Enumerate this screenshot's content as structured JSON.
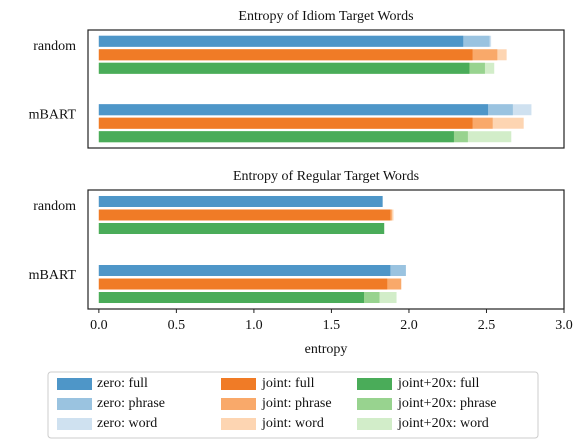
{
  "chart_data": [
    {
      "type": "barh",
      "title": "Entropy of Idiom Target Words",
      "categories": [
        "random",
        "mBART"
      ],
      "series": [
        {
          "values": [
            2.35,
            2.51
          ]
        },
        {
          "values": [
            2.52,
            2.67
          ]
        },
        {
          "values": [
            2.53,
            2.79
          ]
        },
        {
          "values": [
            2.41,
            2.41
          ]
        },
        {
          "values": [
            2.57,
            2.54
          ]
        },
        {
          "values": [
            2.63,
            2.74
          ]
        },
        {
          "values": [
            2.39,
            2.29
          ]
        },
        {
          "values": [
            2.49,
            2.38
          ]
        },
        {
          "values": [
            2.55,
            2.66
          ]
        }
      ],
      "xlim": [
        -0.07,
        3.0
      ]
    },
    {
      "type": "barh",
      "title": "Entropy of Regular Target Words",
      "categories": [
        "random",
        "mBART"
      ],
      "series": [
        {
          "name": "zero: full",
          "color": "#4e96c8",
          "values": [
            1.83,
            1.88
          ]
        },
        {
          "name": "zero: phrase",
          "color": "#9ac3e0",
          "values": [
            1.83,
            1.98
          ]
        },
        {
          "name": "zero: word",
          "color": "#cfe1f0",
          "values": [
            1.83,
            1.98
          ]
        },
        {
          "name": "joint: full",
          "color": "#f07b26",
          "values": [
            1.88,
            1.86
          ]
        },
        {
          "name": "joint: phrase",
          "color": "#f9a96a",
          "values": [
            1.89,
            1.95
          ]
        },
        {
          "name": "joint: word",
          "color": "#fdd5b2",
          "values": [
            1.9,
            1.95
          ]
        },
        {
          "name": "joint+20x: full",
          "color": "#4aac59",
          "values": [
            1.84,
            1.71
          ]
        },
        {
          "name": "joint+20x: phrase",
          "color": "#98d38f",
          "values": [
            1.84,
            1.81
          ]
        },
        {
          "name": "joint+20x: word",
          "color": "#d2edc9",
          "values": [
            1.84,
            1.92
          ]
        }
      ],
      "xlim": [
        -0.07,
        3.0
      ],
      "xticks": [
        {
          "value": 0,
          "label": "0.0"
        },
        0.5,
        {
          "value": 1,
          "label": "1.0"
        },
        1.5,
        {
          "value": 2,
          "label": "2.0"
        },
        2.5,
        {
          "value": 3,
          "label": "3.0"
        }
      ],
      "xlabel": "entropy"
    }
  ]
}
